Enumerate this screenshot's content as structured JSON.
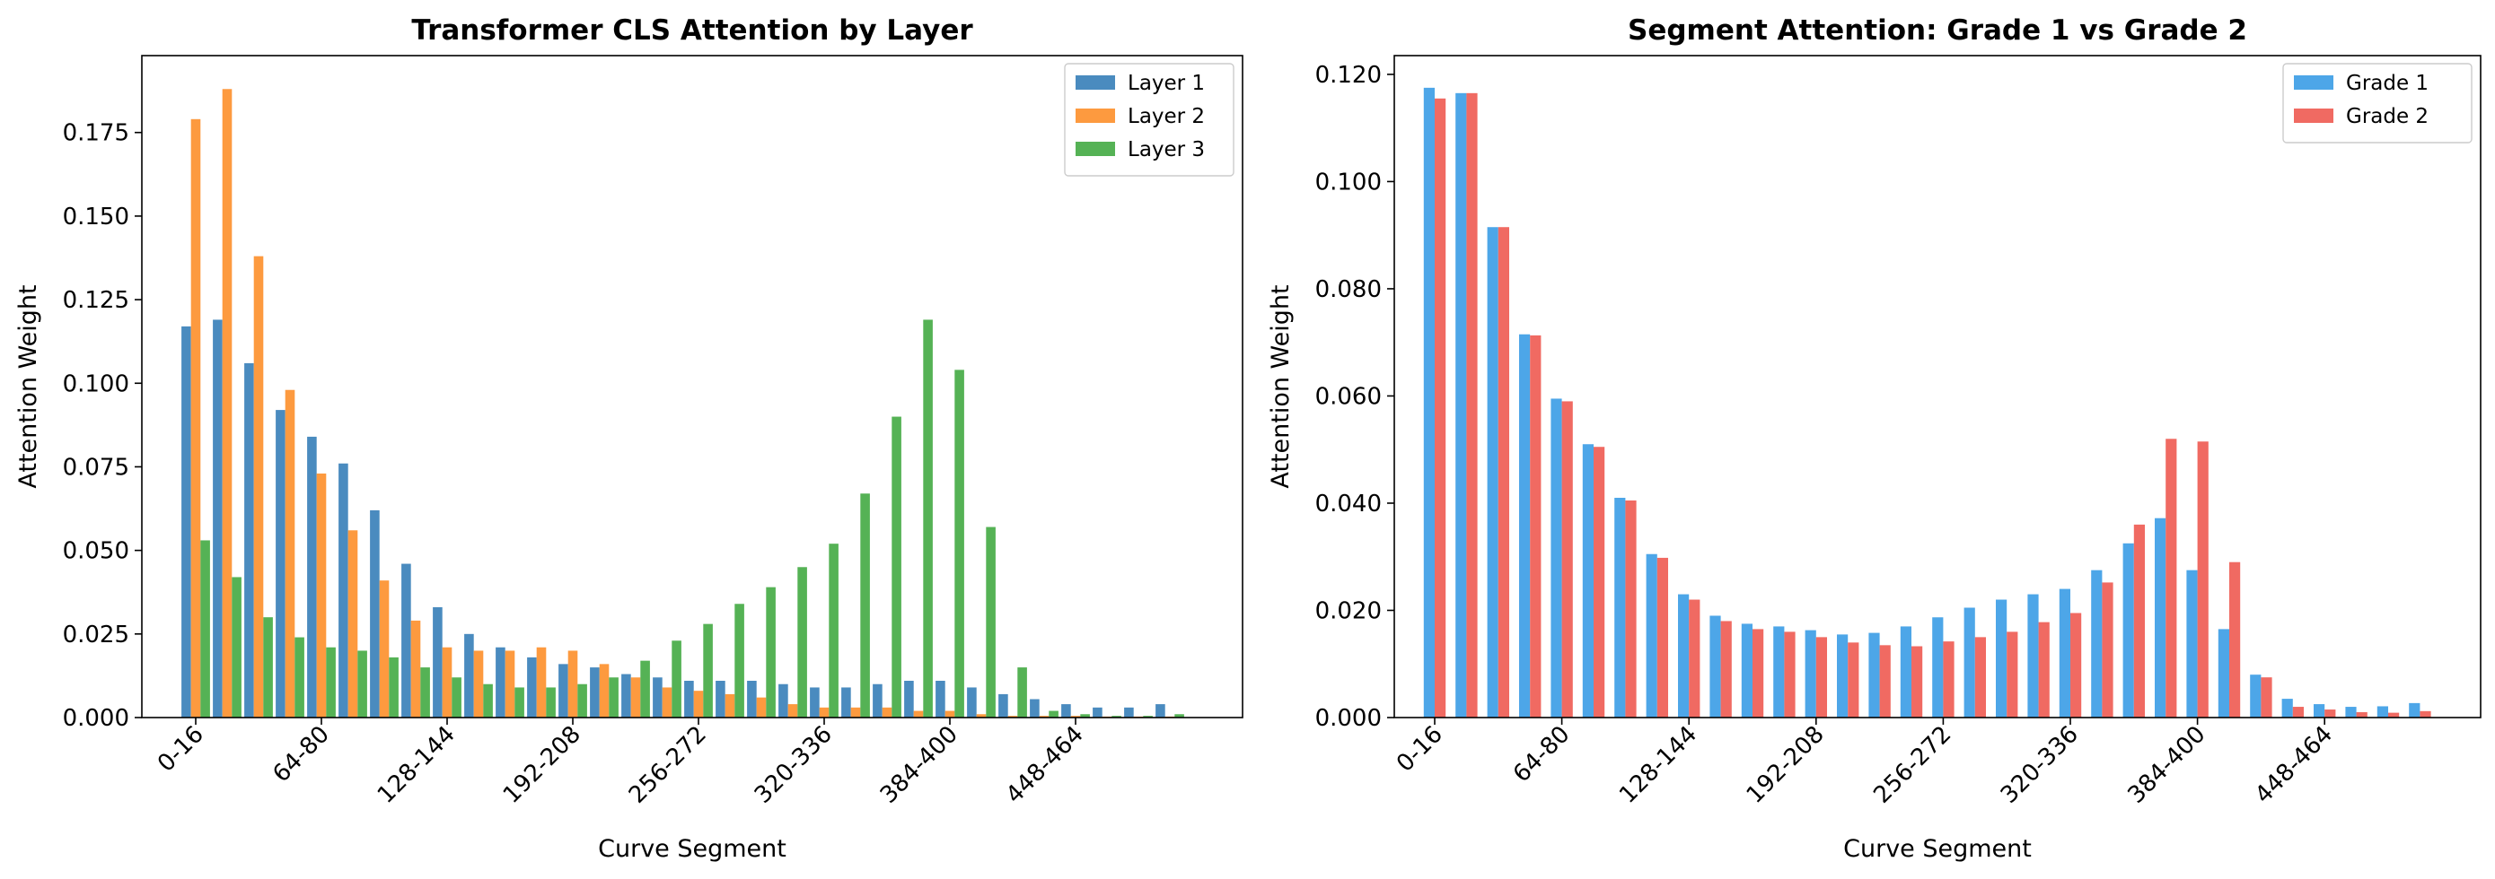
{
  "chart_data": [
    {
      "type": "bar",
      "title": "Transformer CLS Attention by Layer",
      "xlabel": "Curve Segment",
      "ylabel": "Attention Weight",
      "ylim": [
        0,
        0.198
      ],
      "yticks": [
        "0.000",
        "0.025",
        "0.050",
        "0.075",
        "0.100",
        "0.125",
        "0.150",
        "0.175"
      ],
      "ytick_values": [
        0,
        0.025,
        0.05,
        0.075,
        0.1,
        0.125,
        0.15,
        0.175
      ],
      "xtick_labels": [
        "0-16",
        "64-80",
        "128-144",
        "192-208",
        "256-272",
        "320-336",
        "384-400",
        "448-464"
      ],
      "xtick_positions": [
        0,
        4,
        8,
        12,
        16,
        20,
        24,
        28
      ],
      "category_count": 32,
      "legend_position": "top-right",
      "grid": false,
      "series": [
        {
          "name": "Layer 1",
          "color": "#4a8bbf",
          "values": [
            0.117,
            0.119,
            0.106,
            0.092,
            0.084,
            0.076,
            0.062,
            0.046,
            0.033,
            0.025,
            0.021,
            0.018,
            0.016,
            0.015,
            0.013,
            0.012,
            0.011,
            0.011,
            0.011,
            0.01,
            0.009,
            0.009,
            0.01,
            0.011,
            0.011,
            0.009,
            0.007,
            0.0055,
            0.004,
            0.003,
            0.003,
            0.004
          ]
        },
        {
          "name": "Layer 2",
          "color": "#fd9a3f",
          "values": [
            0.179,
            0.188,
            0.138,
            0.098,
            0.073,
            0.056,
            0.041,
            0.029,
            0.021,
            0.02,
            0.02,
            0.021,
            0.02,
            0.016,
            0.012,
            0.009,
            0.008,
            0.007,
            0.006,
            0.004,
            0.003,
            0.003,
            0.003,
            0.002,
            0.002,
            0.001,
            0.0005,
            0.0005,
            0.0005,
            0.0003,
            0.0003,
            0.0003
          ]
        },
        {
          "name": "Layer 3",
          "color": "#55b255",
          "values": [
            0.053,
            0.042,
            0.03,
            0.024,
            0.021,
            0.02,
            0.018,
            0.015,
            0.012,
            0.01,
            0.009,
            0.009,
            0.01,
            0.012,
            0.017,
            0.023,
            0.028,
            0.034,
            0.039,
            0.045,
            0.052,
            0.067,
            0.09,
            0.119,
            0.104,
            0.057,
            0.015,
            0.002,
            0.001,
            0.0005,
            0.0005,
            0.001
          ]
        }
      ]
    },
    {
      "type": "bar",
      "title": "Segment Attention: Grade 1 vs Grade 2",
      "xlabel": "Curve Segment",
      "ylabel": "Attention Weight",
      "ylim": [
        0,
        0.1235
      ],
      "yticks": [
        "0.000",
        "0.020",
        "0.040",
        "0.060",
        "0.080",
        "0.100",
        "0.120"
      ],
      "ytick_values": [
        0,
        0.02,
        0.04,
        0.06,
        0.08,
        0.1,
        0.12
      ],
      "xtick_labels": [
        "0-16",
        "64-80",
        "128-144",
        "192-208",
        "256-272",
        "320-336",
        "384-400",
        "448-464"
      ],
      "xtick_positions": [
        0,
        4,
        8,
        12,
        16,
        20,
        24,
        28
      ],
      "category_count": 32,
      "legend_position": "top-right",
      "grid": false,
      "series": [
        {
          "name": "Grade 1",
          "color": "#4da6e8",
          "values": [
            0.1175,
            0.1165,
            0.0915,
            0.0715,
            0.0595,
            0.051,
            0.041,
            0.0305,
            0.023,
            0.019,
            0.0175,
            0.017,
            0.0163,
            0.0155,
            0.0158,
            0.017,
            0.0187,
            0.0205,
            0.022,
            0.023,
            0.024,
            0.0275,
            0.0325,
            0.0372,
            0.0275,
            0.0165,
            0.008,
            0.0035,
            0.0025,
            0.002,
            0.0021,
            0.0027
          ]
        },
        {
          "name": "Grade 2",
          "color": "#f06a62",
          "values": [
            0.1155,
            0.1165,
            0.0915,
            0.0713,
            0.059,
            0.0505,
            0.0405,
            0.0298,
            0.022,
            0.018,
            0.0165,
            0.016,
            0.015,
            0.014,
            0.0135,
            0.0133,
            0.0142,
            0.015,
            0.016,
            0.0178,
            0.0195,
            0.0252,
            0.036,
            0.052,
            0.0515,
            0.029,
            0.0075,
            0.002,
            0.0015,
            0.001,
            0.0009,
            0.0012
          ]
        }
      ]
    }
  ]
}
